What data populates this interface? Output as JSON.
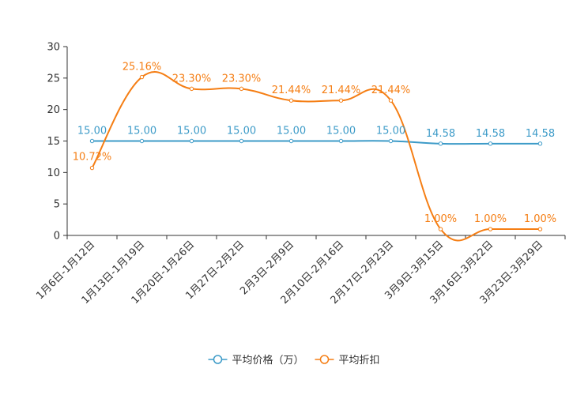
{
  "chart_data": {
    "type": "line",
    "title": "",
    "xlabel": "",
    "ylabel": "",
    "categories": [
      "1月6日-1月12日",
      "1月13日-1月19日",
      "1月20日-1月26日",
      "1月27日-2月2日",
      "2月3日-2月9日",
      "2月10日-2月16日",
      "2月17日-2月23日",
      "3月9日-3月15日",
      "3月16日-3月22日",
      "3月23日-3月29日"
    ],
    "ylim": [
      0,
      30
    ],
    "yticks": [
      0,
      5,
      10,
      15,
      20,
      25,
      30
    ],
    "grid": false,
    "legend_position": "bottom-center",
    "series": [
      {
        "name": "平均价格（万）",
        "color": "#3d9bc8",
        "smooth": true,
        "values": [
          15.0,
          15.0,
          15.0,
          15.0,
          15.0,
          15.0,
          15.0,
          14.58,
          14.58,
          14.58
        ],
        "labels": [
          "15.00",
          "15.00",
          "15.00",
          "15.00",
          "15.00",
          "15.00",
          "15.00",
          "14.58",
          "14.58",
          "14.58"
        ]
      },
      {
        "name": "平均折扣",
        "color": "#f57e14",
        "smooth": true,
        "values": [
          10.72,
          25.16,
          23.3,
          23.3,
          21.44,
          21.44,
          21.44,
          1.0,
          1.0,
          1.0
        ],
        "labels": [
          "10.72%",
          "25.16%",
          "23.30%",
          "23.30%",
          "21.44%",
          "21.44%",
          "21.44%",
          "1.00%",
          "1.00%",
          "1.00%"
        ]
      }
    ]
  }
}
